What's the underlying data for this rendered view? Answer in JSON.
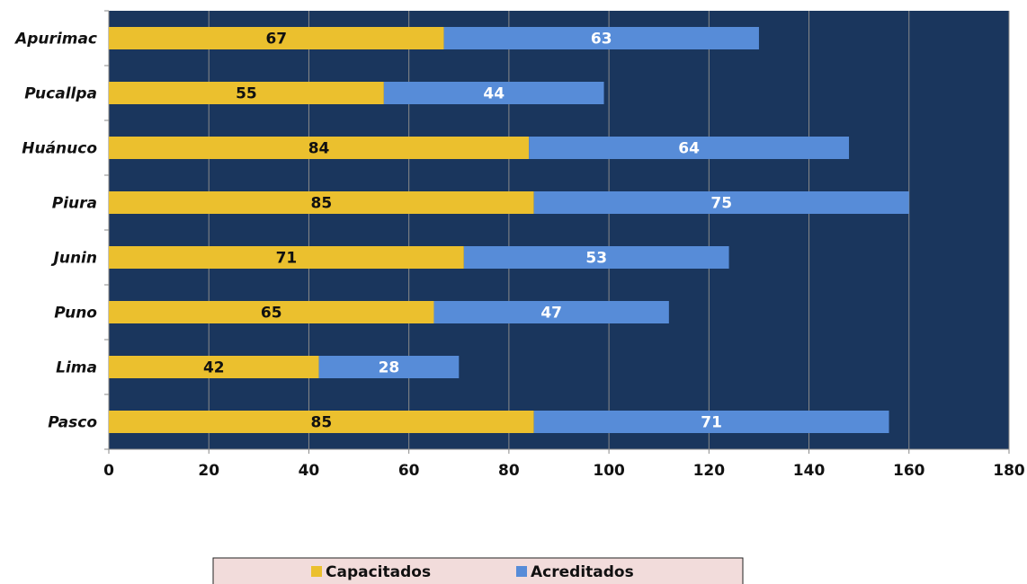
{
  "chart_data": {
    "type": "bar",
    "orientation": "horizontal",
    "stacked": true,
    "categories": [
      "Apurimac",
      "Pucallpa",
      "Huánuco",
      "Piura",
      "Junin",
      "Puno",
      "Lima",
      "Pasco"
    ],
    "series": [
      {
        "name": "Capacitados",
        "color": "#EBC02E",
        "values": [
          67,
          55,
          84,
          85,
          71,
          65,
          42,
          85
        ]
      },
      {
        "name": "Acreditados",
        "color": "#578CD8",
        "values": [
          63,
          44,
          64,
          75,
          53,
          47,
          28,
          71
        ]
      }
    ],
    "xlim": [
      0,
      180
    ],
    "x_ticks": [
      0,
      20,
      40,
      60,
      80,
      100,
      120,
      140,
      160,
      180
    ],
    "grid": true,
    "legend_position": "bottom-center",
    "plot_background": "#1A365D",
    "legend_background": "#F2DCDB",
    "title": "",
    "xlabel": "",
    "ylabel": ""
  }
}
